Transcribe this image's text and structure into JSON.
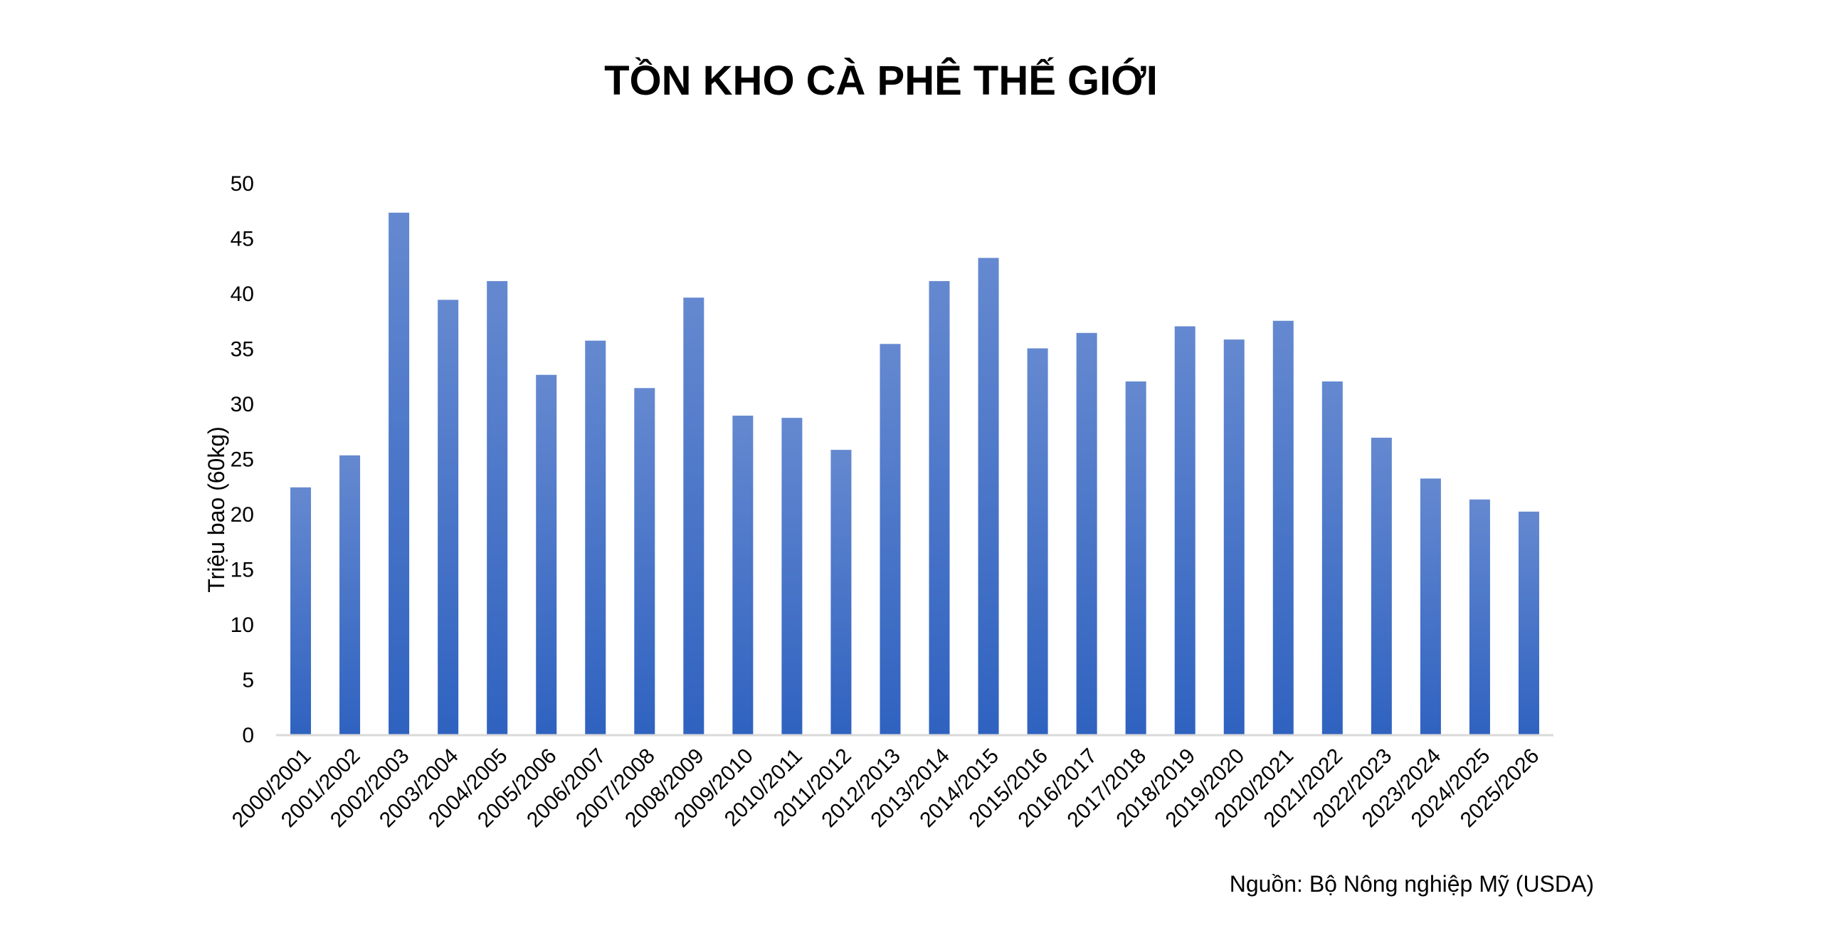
{
  "chart_data": {
    "type": "bar",
    "title": "TỒN KHO CÀ PHÊ THẾ GIỚI",
    "ylabel": "Triệu bao (60kg)",
    "xlabel": "",
    "source": "Nguồn: Bộ Nông nghiệp Mỹ (USDA)",
    "ylim": [
      0,
      50
    ],
    "yticks": [
      "0",
      "5",
      "10",
      "15",
      "20",
      "25",
      "30",
      "35",
      "40",
      "45",
      "50"
    ],
    "grid": false,
    "bar_color_top": "#6589d0",
    "bar_color_bottom": "#2f62c0",
    "categories": [
      "2000/2001",
      "2001/2002",
      "2002/2003",
      "2003/2004",
      "2004/2005",
      "2005/2006",
      "2006/2007",
      "2007/2008",
      "2008/2009",
      "2009/2010",
      "2010/2011",
      "2011/2012",
      "2012/2013",
      "2013/2014",
      "2014/2015",
      "2015/2016",
      "2016/2017",
      "2017/2018",
      "2018/2019",
      "2019/2020",
      "2020/2021",
      "2021/2022",
      "2022/2023",
      "2023/2024",
      "2024/2025",
      "2025/2026"
    ],
    "values": [
      22.4,
      25.3,
      47.3,
      39.4,
      41.1,
      32.6,
      35.7,
      31.4,
      39.6,
      28.9,
      28.7,
      25.8,
      35.4,
      41.1,
      43.2,
      35.0,
      36.4,
      32.0,
      37.0,
      35.8,
      37.5,
      32.0,
      26.9,
      23.2,
      21.3,
      20.2
    ]
  }
}
